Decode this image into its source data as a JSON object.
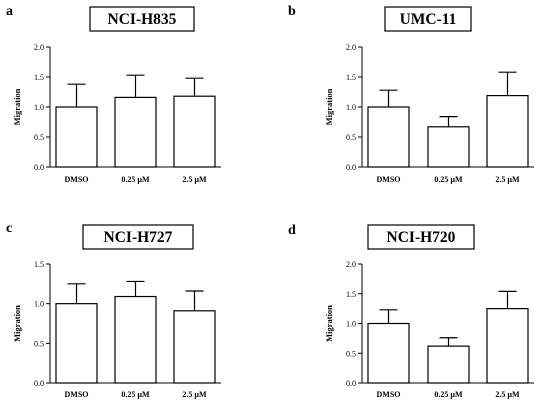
{
  "chart_data": [
    {
      "type": "bar",
      "panel": "a",
      "title": "NCI-H835",
      "ylabel": "Migration",
      "categories": [
        "DMSO",
        "0.25 µM",
        "2.5 µM"
      ],
      "values": [
        1.0,
        1.16,
        1.18
      ],
      "errors": [
        0.38,
        0.37,
        0.3
      ],
      "ylim": [
        0,
        2.0
      ],
      "yticks": [
        "0.0",
        "0.5",
        "1.0",
        "1.5",
        "2.0"
      ]
    },
    {
      "type": "bar",
      "panel": "b",
      "title": "UMC-11",
      "ylabel": "Migration",
      "categories": [
        "DMSO",
        "0.25 µM",
        "2.5 µM"
      ],
      "values": [
        1.0,
        0.67,
        1.19
      ],
      "errors": [
        0.28,
        0.17,
        0.39
      ],
      "ylim": [
        0,
        2.0
      ],
      "yticks": [
        "0.0",
        "0.5",
        "1.0",
        "1.5",
        "2.0"
      ]
    },
    {
      "type": "bar",
      "panel": "c",
      "title": "NCI-H727",
      "ylabel": "Migration",
      "categories": [
        "DMSO",
        "0.25 µM",
        "2.5 µM"
      ],
      "values": [
        1.0,
        1.09,
        0.91
      ],
      "errors": [
        0.25,
        0.19,
        0.25
      ],
      "ylim": [
        0,
        1.5
      ],
      "yticks": [
        "0.0",
        "0.5",
        "1.0",
        "1.5"
      ]
    },
    {
      "type": "bar",
      "panel": "d",
      "title": "NCI-H720",
      "ylabel": "Migration",
      "categories": [
        "DMSO",
        "0.25 µM",
        "2.5 µM"
      ],
      "values": [
        1.0,
        0.62,
        1.25
      ],
      "errors": [
        0.23,
        0.14,
        0.29
      ],
      "ylim": [
        0,
        2.0
      ],
      "yticks": [
        "0.0",
        "0.5",
        "1.0",
        "1.5",
        "2.0"
      ]
    }
  ]
}
